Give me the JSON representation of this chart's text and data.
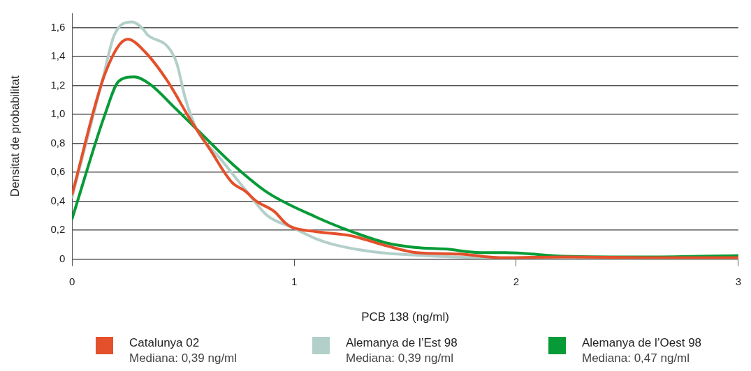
{
  "chart_data": {
    "type": "line",
    "xlabel": "PCB 138 (ng/ml)",
    "ylabel": "Densitat de probabilitat",
    "xlim": [
      0,
      3
    ],
    "xticks": [
      0,
      1,
      2,
      3
    ],
    "ylim": [
      0,
      1.7
    ],
    "yticks": [
      0,
      {
        "value": 0.2,
        "label": "0,2"
      },
      {
        "value": 0.4,
        "label": "0,4"
      },
      {
        "value": 0.6,
        "label": "0,6"
      },
      {
        "value": 0.8,
        "label": "0,8"
      },
      {
        "value": 1.0,
        "label": "1,0"
      },
      {
        "value": 1.2,
        "label": "1,2"
      },
      {
        "value": 1.4,
        "label": "1,4"
      },
      {
        "value": 1.6,
        "label": "1,6"
      }
    ],
    "grid": "y",
    "legend": "bottom",
    "marker": "none",
    "line_style": "solid",
    "series": [
      {
        "name": "Catalunya 02",
        "color": "#e4502b",
        "x": [
          0,
          0.15,
          0.25,
          0.33,
          0.43,
          0.53,
          0.62,
          0.72,
          0.78,
          0.83,
          0.91,
          0.96,
          0.99,
          1.1,
          1.26,
          1.42,
          1.55,
          1.74,
          1.93,
          2.22,
          2.6,
          3
        ],
        "values": [
          0.45,
          1.29,
          1.52,
          1.43,
          1.23,
          0.97,
          0.76,
          0.53,
          0.47,
          0.4,
          0.33,
          0.25,
          0.22,
          0.19,
          0.16,
          0.09,
          0.045,
          0.035,
          0.01,
          0.015,
          0.01,
          0.01
        ]
      },
      {
        "name": "Alemanya de l’Est 98",
        "color": "#b3cfca",
        "x": [
          0,
          0.14,
          0.19,
          0.27,
          0.32,
          0.34,
          0.43,
          0.47,
          0.51,
          0.56,
          0.67,
          0.78,
          0.88,
          0.99,
          1.1,
          1.18,
          1.36,
          1.58,
          1.84,
          2.3,
          3
        ],
        "values": [
          0.43,
          1.26,
          1.55,
          1.64,
          1.59,
          1.55,
          1.47,
          1.36,
          1.11,
          0.9,
          0.69,
          0.48,
          0.3,
          0.22,
          0.14,
          0.1,
          0.05,
          0.025,
          0.01,
          0.005,
          0.005
        ]
      },
      {
        "name": "Alemanya de l’Oest 98",
        "color": "#069b37",
        "x": [
          0,
          0.15,
          0.21,
          0.28,
          0.35,
          0.46,
          0.58,
          0.72,
          0.88,
          1.1,
          1.26,
          1.42,
          1.55,
          1.68,
          1.84,
          1.95,
          2.22,
          2.6,
          3
        ],
        "values": [
          0.28,
          1.01,
          1.23,
          1.26,
          1.21,
          1.05,
          0.87,
          0.66,
          0.46,
          0.29,
          0.19,
          0.11,
          0.08,
          0.07,
          0.045,
          0.045,
          0.02,
          0.015,
          0.025
        ]
      }
    ],
    "annotations": [
      "Mediana: 0,39 ng/ml",
      "Mediana: 0,39 ng/ml",
      "Mediana: 0,47 ng/ml"
    ]
  }
}
